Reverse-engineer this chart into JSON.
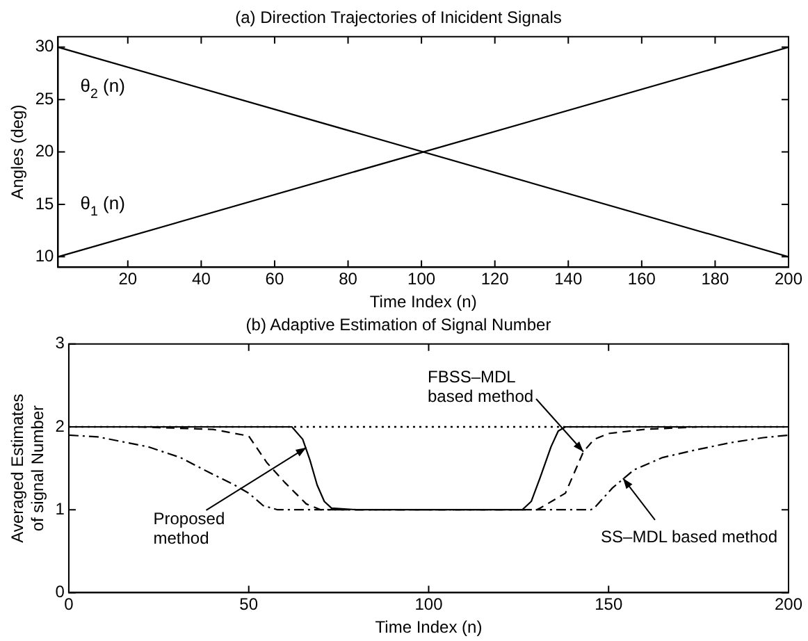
{
  "chart_data": [
    {
      "type": "line",
      "title": "(a) Direction Trajectories of Inicident Signals",
      "xlabel": "Time Index (n)",
      "ylabel": "Angles (deg)",
      "xlim": [
        1,
        200
      ],
      "ylim": [
        9,
        31
      ],
      "xticks": [
        20,
        40,
        60,
        80,
        100,
        120,
        140,
        160,
        180,
        200
      ],
      "yticks": [
        10,
        15,
        20,
        25,
        30
      ],
      "grid": false,
      "legend": false,
      "marker": "none",
      "series": [
        {
          "name": "θ$_{1}$ (n)",
          "color": "#000000",
          "line_style": "solid",
          "x": [
            1,
            200
          ],
          "values": [
            10,
            30
          ]
        },
        {
          "name": "θ$_{2}$ (n)",
          "color": "#000000",
          "line_style": "solid",
          "x": [
            1,
            200
          ],
          "values": [
            30,
            10
          ]
        }
      ]
    },
    {
      "type": "line",
      "title": "(b) Adaptive Estimation of Signal Number",
      "xlabel": "Time Index (n)",
      "ylabel": "Averaged Estimates of signal Number",
      "xlim": [
        0,
        200
      ],
      "ylim": [
        0,
        3
      ],
      "xticks": [
        0,
        50,
        100,
        150,
        200
      ],
      "yticks": [
        0,
        1,
        2,
        3
      ],
      "grid": false,
      "legend": false,
      "marker": "none",
      "series": [
        {
          "color": "#000000",
          "line_style": "solid",
          "x": [
            0,
            62,
            65,
            67,
            69,
            71,
            73,
            80,
            126,
            128.5,
            131,
            134,
            136,
            138,
            150,
            200
          ],
          "values": [
            2,
            2,
            1.85,
            1.6,
            1.3,
            1.1,
            1.02,
            1,
            1,
            1.1,
            1.39,
            1.76,
            1.95,
            2,
            2,
            2
          ]
        },
        {
          "color": "#000000",
          "line_style": "dashed",
          "x": [
            0,
            19,
            40,
            50,
            55,
            60,
            66,
            70,
            130,
            131,
            138,
            143,
            146,
            150,
            160,
            175,
            200
          ],
          "values": [
            2,
            2,
            1.97,
            1.89,
            1.57,
            1.33,
            1.07,
            1,
            1,
            1.02,
            1.2,
            1.7,
            1.85,
            1.92,
            1.97,
            2,
            2
          ]
        },
        {
          "color": "#000000",
          "line_style": "dashdot",
          "x": [
            0,
            8,
            22,
            31,
            39,
            46,
            50,
            54,
            58,
            145,
            146,
            151,
            157,
            165,
            174,
            184,
            193,
            200
          ],
          "values": [
            1.9,
            1.88,
            1.76,
            1.63,
            1.45,
            1.3,
            1.2,
            1.05,
            1,
            1,
            1.02,
            1.26,
            1.48,
            1.63,
            1.72,
            1.81,
            1.87,
            1.9
          ]
        }
      ],
      "ref_lines": [
        {
          "axis": "y",
          "value": 2,
          "color": "#000000",
          "line_style": "dotted"
        }
      ],
      "annotations": [
        {
          "text": "Proposed method",
          "x": 66,
          "y": 1.75
        },
        {
          "text": "FBSS–MDL based method",
          "x": 143,
          "y": 1.7
        },
        {
          "text": "SS–MDL based method",
          "x": 154,
          "y": 1.38
        }
      ]
    }
  ]
}
